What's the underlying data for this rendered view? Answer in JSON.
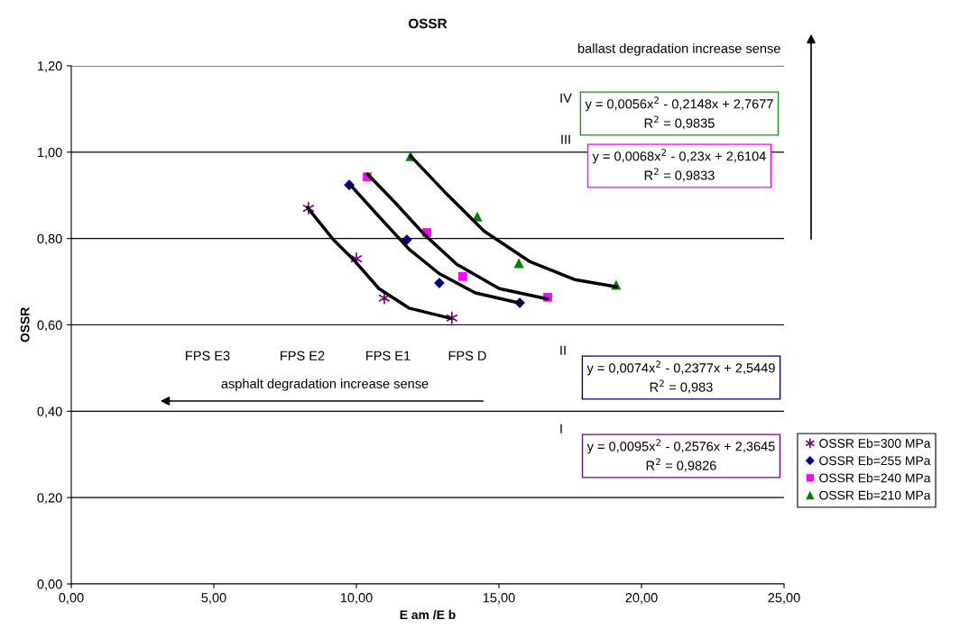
{
  "chart_data": {
    "type": "scatter",
    "title": "OSSR",
    "xlabel": "E am /E b",
    "ylabel": "OSSR",
    "xlim": [
      0,
      25
    ],
    "ylim": [
      0,
      1.2
    ],
    "xticks": [
      {
        "value": 0,
        "label": "0,00"
      },
      {
        "value": 5,
        "label": "5,00"
      },
      {
        "value": 10,
        "label": "10,00"
      },
      {
        "value": 15,
        "label": "15,00"
      },
      {
        "value": 20,
        "label": "20,00"
      },
      {
        "value": 25,
        "label": "25,00"
      }
    ],
    "yticks": [
      {
        "value": 0,
        "label": "0,00"
      },
      {
        "value": 0.2,
        "label": "0,20"
      },
      {
        "value": 0.4,
        "label": "0,40"
      },
      {
        "value": 0.6,
        "label": "0,60"
      },
      {
        "value": 0.8,
        "label": "0,80"
      },
      {
        "value": 1.0,
        "label": "1,00"
      },
      {
        "value": 1.2,
        "label": "1,20"
      }
    ],
    "grid": "y",
    "legend": "right",
    "series": [
      {
        "name": "OSSR Eb=300 MPa",
        "color": "#800080",
        "marker": "cross",
        "x": [
          8.32,
          10.0,
          10.98,
          13.35
        ],
        "values": [
          0.87,
          0.753,
          0.662,
          0.616
        ]
      },
      {
        "name": "OSSR Eb=255 MPa",
        "color": "#000080",
        "marker": "diamond",
        "x": [
          9.75,
          11.77,
          12.91,
          15.73
        ],
        "values": [
          0.924,
          0.797,
          0.697,
          0.651
        ]
      },
      {
        "name": "OSSR Eb=240 MPa",
        "color": "#ff00ff",
        "marker": "square",
        "x": [
          10.38,
          12.47,
          13.73,
          16.71
        ],
        "values": [
          0.943,
          0.814,
          0.712,
          0.664
        ]
      },
      {
        "name": "OSSR Eb=210 MPa",
        "color": "#008000",
        "marker": "triangle",
        "x": [
          11.9,
          14.24,
          15.7,
          19.11
        ],
        "values": [
          0.991,
          0.851,
          0.743,
          0.693
        ]
      },
      {
        "type": "line",
        "color": "#000000",
        "x": [
          8.28,
          9.21,
          9.9,
          10.79,
          11.84,
          13.32
        ],
        "values": [
          0.872,
          0.796,
          0.751,
          0.684,
          0.639,
          0.615
        ]
      },
      {
        "type": "line",
        "color": "#000000",
        "x": [
          9.79,
          10.79,
          11.85,
          12.9,
          14.17,
          15.75
        ],
        "values": [
          0.924,
          0.851,
          0.775,
          0.719,
          0.674,
          0.65
        ]
      },
      {
        "type": "line",
        "color": "#000000",
        "x": [
          10.39,
          11.32,
          12.37,
          13.53,
          15.01,
          16.7
        ],
        "values": [
          0.949,
          0.886,
          0.81,
          0.74,
          0.684,
          0.66
        ]
      },
      {
        "type": "line",
        "color": "#000000",
        "x": [
          11.9,
          13.11,
          14.48,
          16.07,
          17.65,
          19.12
        ],
        "values": [
          0.991,
          0.907,
          0.817,
          0.747,
          0.705,
          0.688
        ]
      }
    ],
    "annotations": [
      "ballast degradation increase sense",
      "IV",
      "y = 0,0056x$^{2}$ - 0,2148x + 2,7677\nR$^{2}$ = 0,9835",
      "III",
      "y = 0,0068x$^{2}$ - 0,23x + 2,6104\nR$^{2}$ = 0,9833",
      "II",
      "y = 0,0074x$^{2}$ - 0,2377x + 2,5449\nR$^{2}$ = 0,983",
      "I",
      "y = 0,0095x$^{2}$ - 0,2576x + 2,3645\nR$^{2}$ = 0,9826",
      "FPS E3",
      "FPS E2",
      "FPS E1",
      "FPS D",
      "asphalt degradation increase sense"
    ]
  }
}
